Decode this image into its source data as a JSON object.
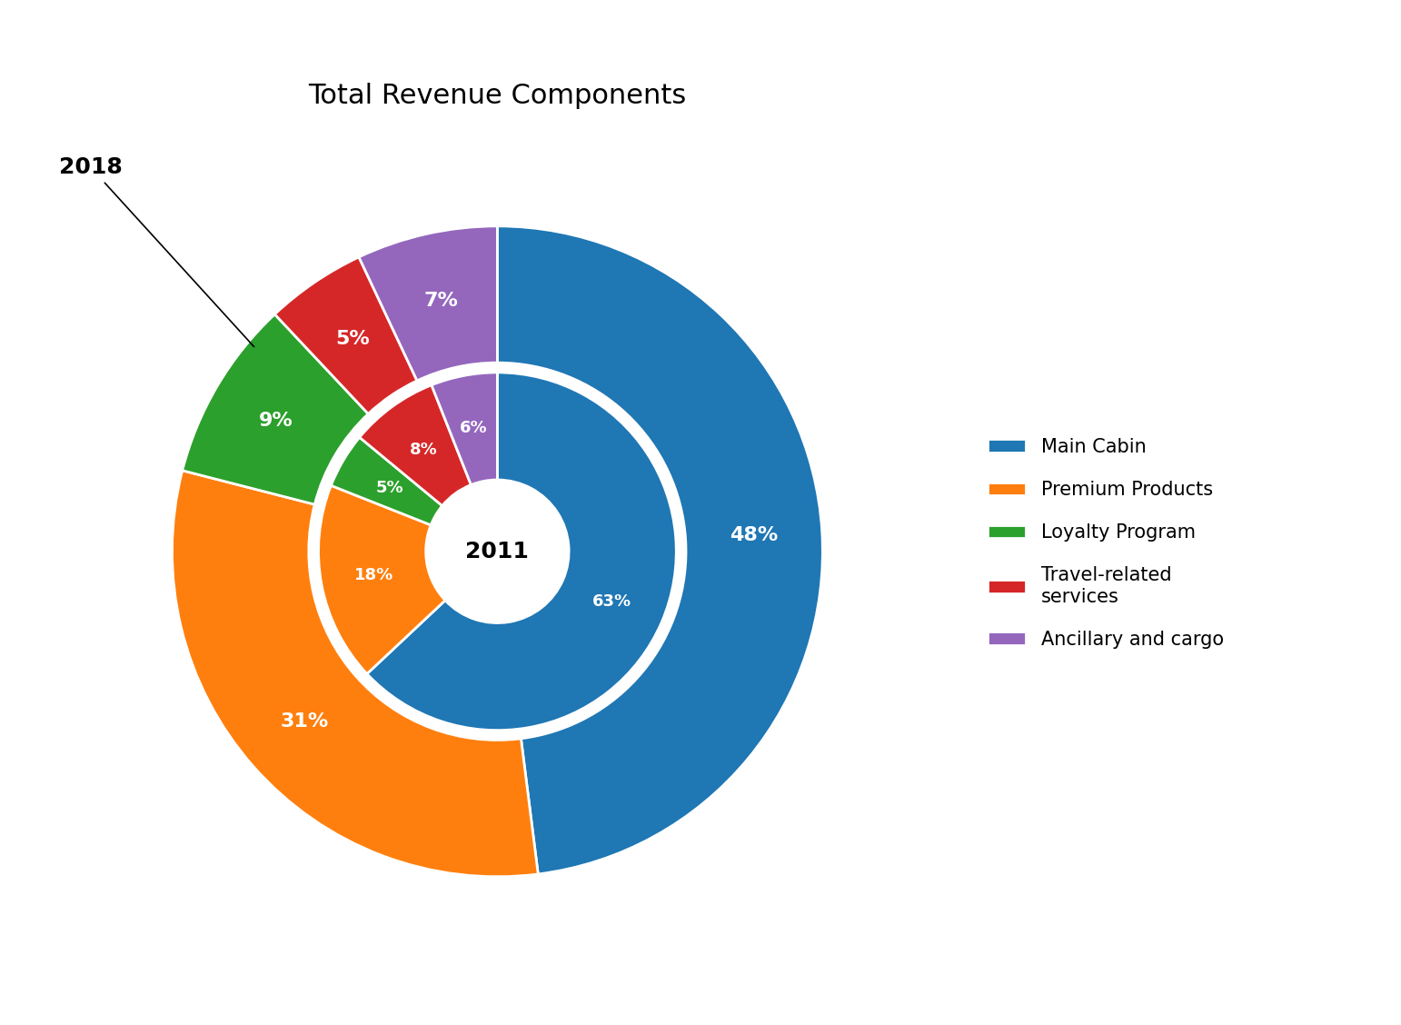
{
  "chart_data": {
    "type": "pie",
    "title": "Total Revenue Components",
    "categories": [
      "Main Cabin",
      "Premium Products",
      "Loyalty Program",
      "Travel-related\nservices",
      "Ancillary and cargo"
    ],
    "series": [
      {
        "name": "2018",
        "values": [
          48,
          31,
          9,
          5,
          7
        ],
        "value_labels": [
          "48%",
          "31%",
          "9%",
          "5%",
          "7%"
        ]
      },
      {
        "name": "2011",
        "values": [
          63,
          18,
          5,
          8,
          6
        ],
        "value_labels": [
          "63%",
          "18%",
          "5%",
          "8%",
          "6%"
        ]
      }
    ],
    "data_labels": true,
    "legend": "center left"
  }
}
